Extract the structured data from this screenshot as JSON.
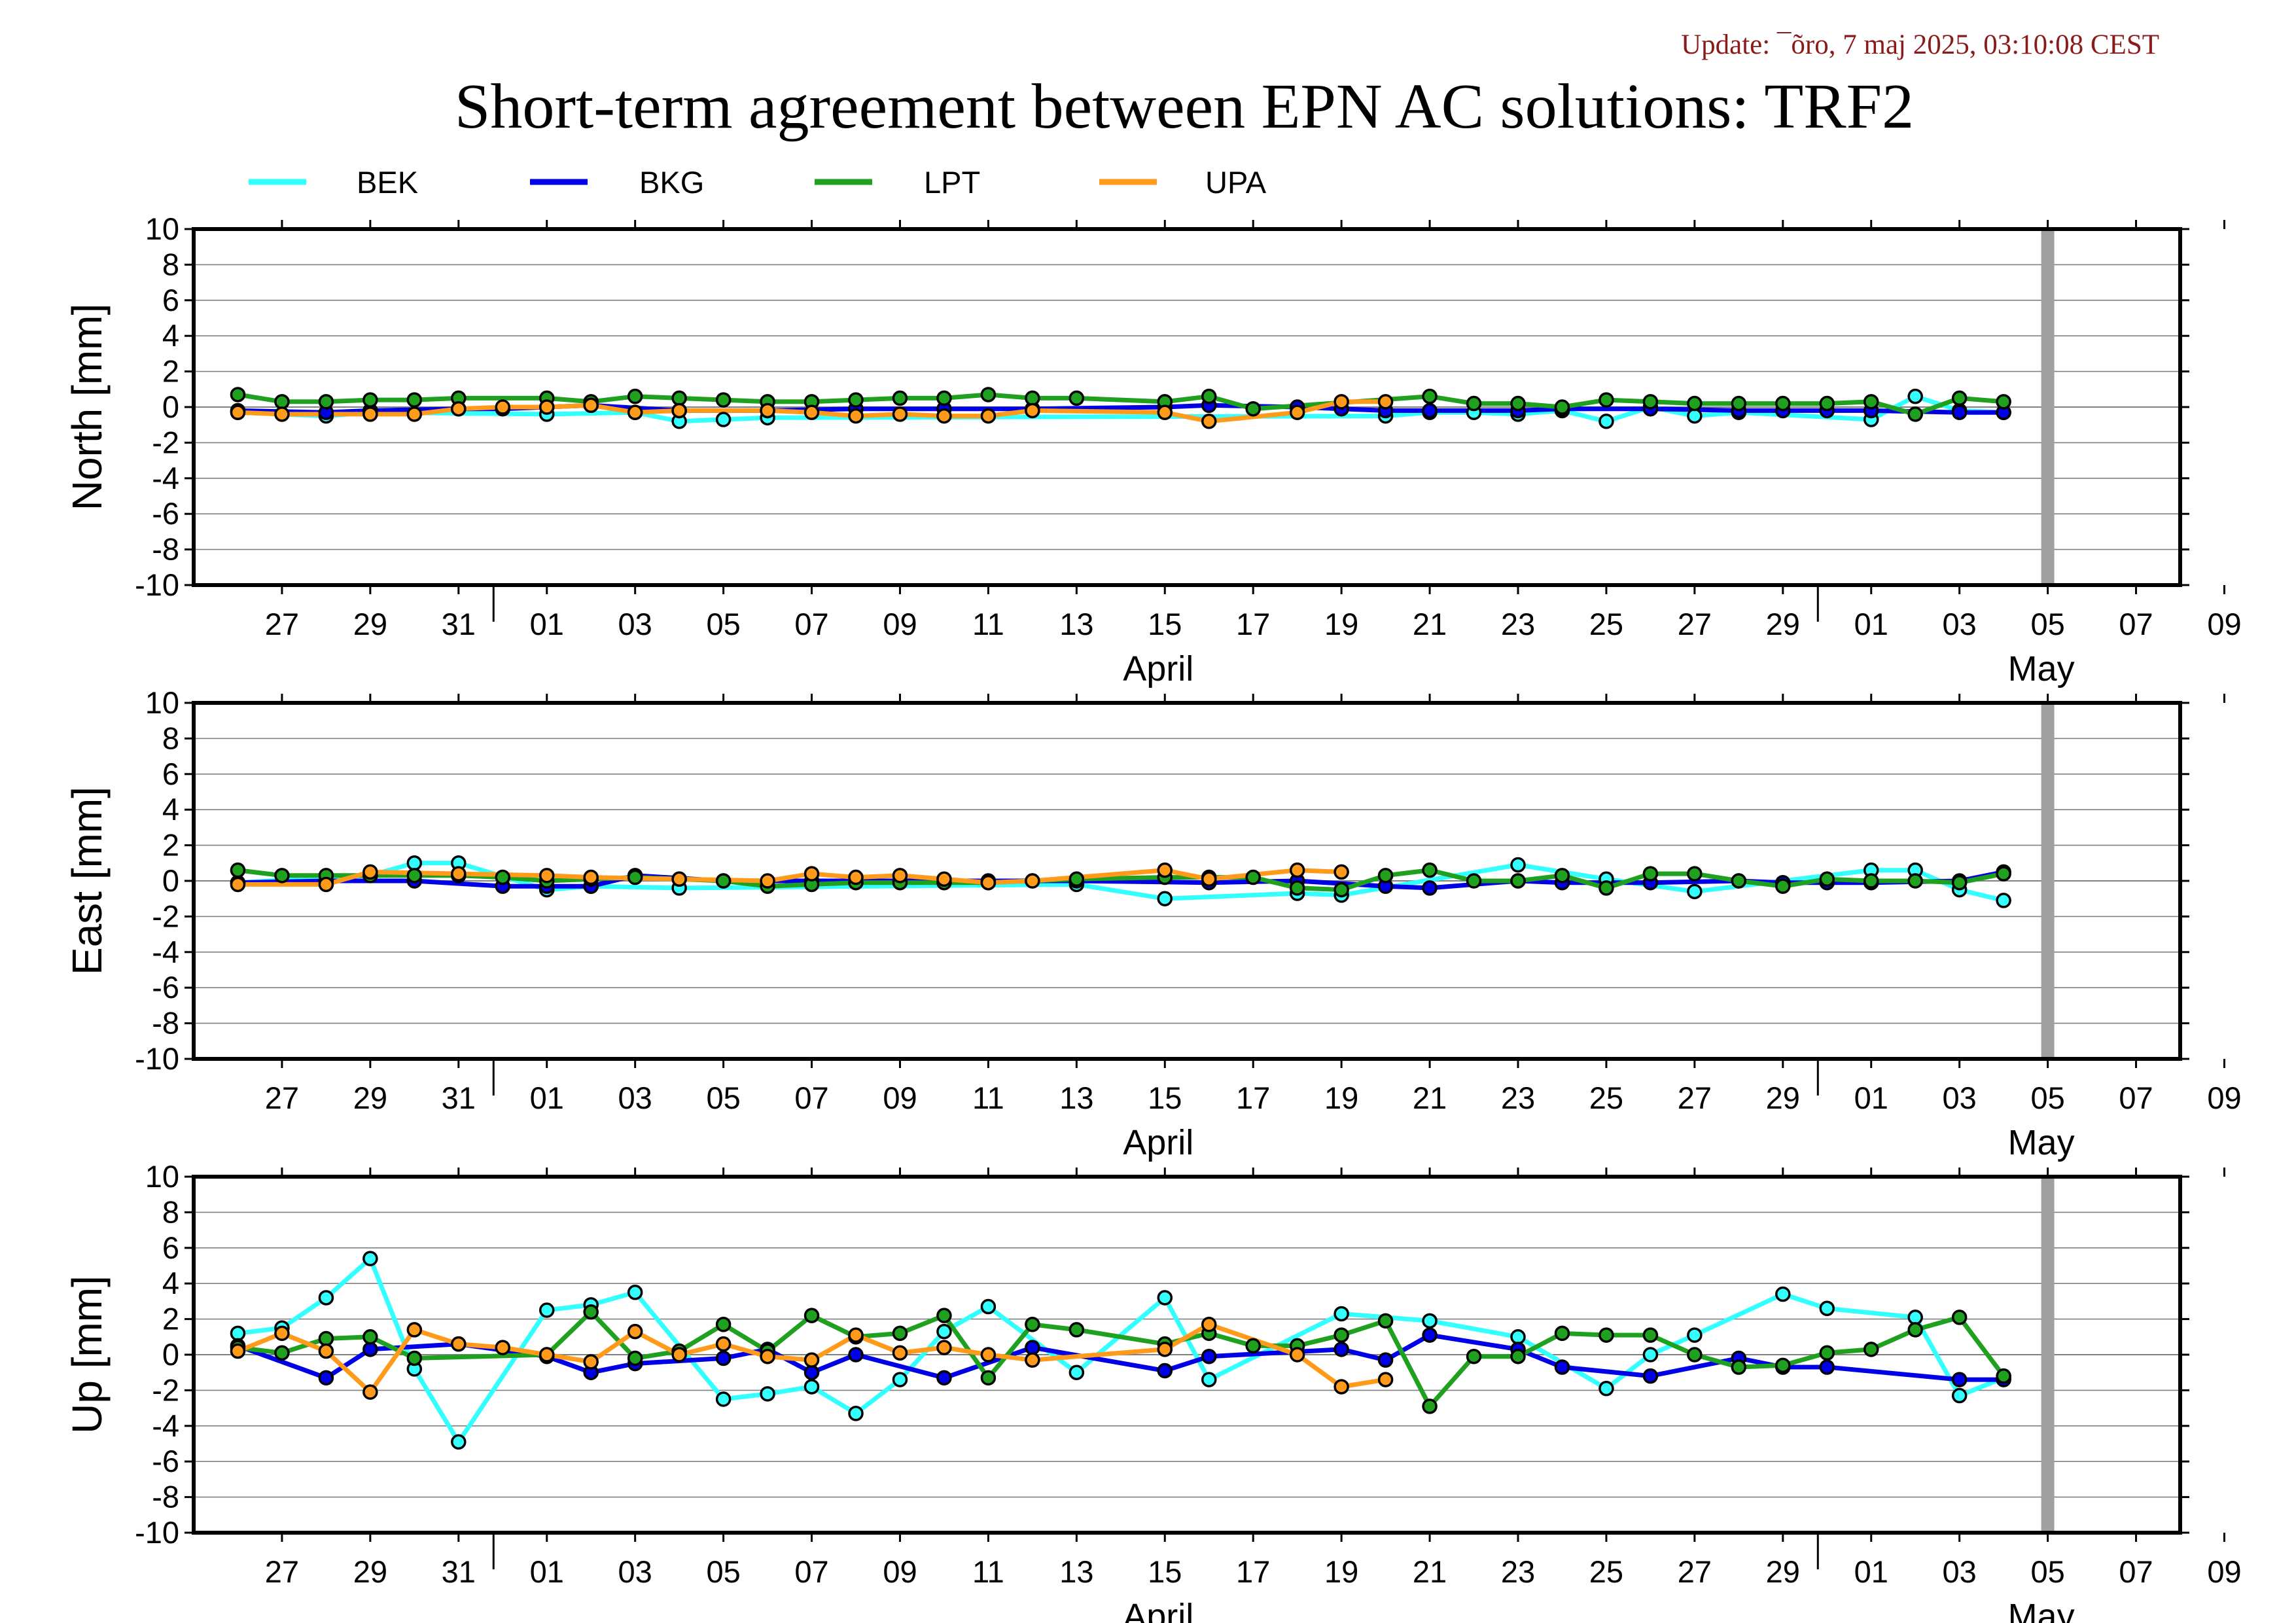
{
  "update": "Update: ¯õro, 7 maj 2025, 03:10:08 CEST",
  "title": "Short-term agreement between EPN AC solutions: TRF2",
  "legend": [
    {
      "name": "BEK",
      "color": "#33ffff"
    },
    {
      "name": "BKG",
      "color": "#0000e6"
    },
    {
      "name": "LPT",
      "color": "#1fa01f"
    },
    {
      "name": "UPA",
      "color": "#ff9a1a"
    }
  ],
  "chart_data": [
    {
      "type": "line",
      "ylabel": "North [mm]",
      "ylim": [
        -10,
        10
      ],
      "yticks": [
        10,
        8,
        6,
        4,
        2,
        0,
        -2,
        -4,
        -6,
        -8,
        -10
      ],
      "xlim": [
        "2025-03-25",
        "2025-05-09"
      ],
      "xtick_labels": [
        "27",
        "29",
        "31",
        "01",
        "03",
        "05",
        "07",
        "09",
        "11",
        "13",
        "15",
        "17",
        "19",
        "21",
        "23",
        "25",
        "27",
        "29",
        "01",
        "03",
        "05",
        "07",
        "09"
      ],
      "month_labels": [
        "April",
        "May"
      ],
      "grid": true,
      "marker_line": "2025-05-06",
      "series": [
        {
          "name": "BEK",
          "x": [
            "2025-03-26",
            "2025-03-28",
            "2025-03-29",
            "2025-04-02",
            "2025-04-04",
            "2025-04-05",
            "2025-04-06",
            "2025-04-07",
            "2025-04-21",
            "2025-04-22",
            "2025-04-23",
            "2025-04-24",
            "2025-04-25",
            "2025-04-26",
            "2025-04-27",
            "2025-04-28",
            "2025-04-29",
            "2025-05-02",
            "2025-05-03",
            "2025-05-04",
            "2025-05-05"
          ],
          "y": [
            -0.3,
            -0.5,
            -0.3,
            -0.4,
            -0.3,
            -0.8,
            -0.7,
            -0.6,
            -0.5,
            -0.3,
            -0.3,
            -0.4,
            -0.2,
            -0.8,
            0.0,
            -0.5,
            -0.3,
            -0.7,
            0.6,
            -0.2,
            -0.3
          ]
        },
        {
          "name": "BKG",
          "x": [
            "2025-03-26",
            "2025-03-28",
            "2025-03-29",
            "2025-03-31",
            "2025-04-01",
            "2025-04-02",
            "2025-04-03",
            "2025-04-05",
            "2025-04-07",
            "2025-04-09",
            "2025-04-11",
            "2025-04-13",
            "2025-04-16",
            "2025-04-17",
            "2025-04-19",
            "2025-04-20",
            "2025-04-21",
            "2025-04-22",
            "2025-04-24",
            "2025-04-25",
            "2025-04-27",
            "2025-04-29",
            "2025-04-30",
            "2025-05-01",
            "2025-05-02",
            "2025-05-04",
            "2025-05-05"
          ],
          "y": [
            -0.2,
            -0.3,
            -0.2,
            -0.1,
            -0.1,
            0.0,
            0.1,
            -0.2,
            -0.2,
            -0.1,
            -0.1,
            -0.1,
            0.0,
            0.1,
            0.0,
            -0.1,
            -0.2,
            -0.2,
            -0.2,
            -0.1,
            -0.1,
            -0.2,
            -0.2,
            -0.2,
            -0.2,
            -0.3,
            -0.3
          ]
        },
        {
          "name": "LPT",
          "x": [
            "2025-03-26",
            "2025-03-27",
            "2025-03-28",
            "2025-03-29",
            "2025-03-30",
            "2025-03-31",
            "2025-04-02",
            "2025-04-03",
            "2025-04-04",
            "2025-04-05",
            "2025-04-06",
            "2025-04-07",
            "2025-04-08",
            "2025-04-09",
            "2025-04-10",
            "2025-04-11",
            "2025-04-12",
            "2025-04-13",
            "2025-04-14",
            "2025-04-16",
            "2025-04-17",
            "2025-04-18",
            "2025-04-22",
            "2025-04-23",
            "2025-04-24",
            "2025-04-25",
            "2025-04-26",
            "2025-04-27",
            "2025-04-28",
            "2025-04-29",
            "2025-04-30",
            "2025-05-01",
            "2025-05-02",
            "2025-05-03",
            "2025-05-04",
            "2025-05-05"
          ],
          "y": [
            0.7,
            0.3,
            0.3,
            0.4,
            0.4,
            0.5,
            0.5,
            0.3,
            0.6,
            0.5,
            0.4,
            0.3,
            0.3,
            0.4,
            0.5,
            0.5,
            0.7,
            0.5,
            0.5,
            0.3,
            0.6,
            -0.1,
            0.6,
            0.2,
            0.2,
            0.0,
            0.4,
            0.3,
            0.2,
            0.2,
            0.2,
            0.2,
            0.3,
            -0.4,
            0.5,
            0.3
          ]
        },
        {
          "name": "UPA",
          "x": [
            "2025-03-26",
            "2025-03-27",
            "2025-03-29",
            "2025-03-30",
            "2025-03-31",
            "2025-04-01",
            "2025-04-02",
            "2025-04-03",
            "2025-04-04",
            "2025-04-05",
            "2025-04-07",
            "2025-04-08",
            "2025-04-09",
            "2025-04-10",
            "2025-04-11",
            "2025-04-12",
            "2025-04-13",
            "2025-04-16",
            "2025-04-17",
            "2025-04-19",
            "2025-04-20",
            "2025-04-21"
          ],
          "y": [
            -0.3,
            -0.4,
            -0.4,
            -0.4,
            -0.1,
            0.0,
            0.0,
            0.1,
            -0.3,
            -0.2,
            -0.2,
            -0.3,
            -0.5,
            -0.4,
            -0.5,
            -0.5,
            -0.2,
            -0.3,
            -0.8,
            -0.3,
            0.3,
            0.3
          ]
        }
      ]
    },
    {
      "type": "line",
      "ylabel": "East [mm]",
      "ylim": [
        -10,
        10
      ],
      "yticks": [
        10,
        8,
        6,
        4,
        2,
        0,
        -2,
        -4,
        -6,
        -8,
        -10
      ],
      "xlim": [
        "2025-03-25",
        "2025-05-09"
      ],
      "xtick_labels": [
        "27",
        "29",
        "31",
        "01",
        "03",
        "05",
        "07",
        "09",
        "11",
        "13",
        "15",
        "17",
        "19",
        "21",
        "23",
        "25",
        "27",
        "29",
        "01",
        "03",
        "05",
        "07",
        "09"
      ],
      "month_labels": [
        "April",
        "May"
      ],
      "grid": true,
      "marker_line": "2025-05-06",
      "series": [
        {
          "name": "BEK",
          "x": [
            "2025-03-26",
            "2025-03-29",
            "2025-03-30",
            "2025-03-31",
            "2025-04-02",
            "2025-04-03",
            "2025-04-05",
            "2025-04-14",
            "2025-04-16",
            "2025-04-19",
            "2025-04-20",
            "2025-04-24",
            "2025-04-26",
            "2025-04-28",
            "2025-05-02",
            "2025-05-03",
            "2025-05-04",
            "2025-05-05"
          ],
          "y": [
            -0.1,
            0.3,
            1.0,
            1.0,
            -0.5,
            -0.3,
            -0.4,
            -0.2,
            -1.0,
            -0.7,
            -0.8,
            0.9,
            0.1,
            -0.6,
            0.6,
            0.6,
            -0.5,
            -1.1
          ]
        },
        {
          "name": "BKG",
          "x": [
            "2025-03-26",
            "2025-03-28",
            "2025-03-30",
            "2025-04-01",
            "2025-04-02",
            "2025-04-03",
            "2025-04-04",
            "2025-04-06",
            "2025-04-08",
            "2025-04-10",
            "2025-04-12",
            "2025-04-14",
            "2025-04-17",
            "2025-04-19",
            "2025-04-21",
            "2025-04-22",
            "2025-04-24",
            "2025-04-25",
            "2025-04-27",
            "2025-04-29",
            "2025-04-30",
            "2025-05-01",
            "2025-05-02",
            "2025-05-04",
            "2025-05-05"
          ],
          "y": [
            -0.1,
            0.0,
            0.0,
            -0.3,
            -0.3,
            -0.3,
            0.3,
            0.0,
            0.0,
            0.0,
            0.0,
            0.0,
            -0.1,
            0.0,
            -0.3,
            -0.4,
            0.0,
            -0.1,
            -0.1,
            0.0,
            -0.1,
            -0.1,
            -0.1,
            0.0,
            0.5
          ]
        },
        {
          "name": "LPT",
          "x": [
            "2025-03-26",
            "2025-03-27",
            "2025-03-28",
            "2025-03-29",
            "2025-03-30",
            "2025-03-31",
            "2025-04-01",
            "2025-04-02",
            "2025-04-03",
            "2025-04-04",
            "2025-04-05",
            "2025-04-06",
            "2025-04-07",
            "2025-04-08",
            "2025-04-09",
            "2025-04-10",
            "2025-04-11",
            "2025-04-12",
            "2025-04-13",
            "2025-04-14",
            "2025-04-16",
            "2025-04-17",
            "2025-04-18",
            "2025-04-19",
            "2025-04-20",
            "2025-04-21",
            "2025-04-22",
            "2025-04-23",
            "2025-04-24",
            "2025-04-25",
            "2025-04-26",
            "2025-04-27",
            "2025-04-28",
            "2025-04-29",
            "2025-04-30",
            "2025-05-01",
            "2025-05-02",
            "2025-05-03",
            "2025-05-04",
            "2025-05-05"
          ],
          "y": [
            0.6,
            0.3,
            0.3,
            0.3,
            0.3,
            0.3,
            0.2,
            0.0,
            0.1,
            0.2,
            0.1,
            0.0,
            -0.3,
            -0.2,
            -0.1,
            -0.1,
            -0.1,
            -0.1,
            0.0,
            0.1,
            0.2,
            0.2,
            0.2,
            -0.4,
            -0.5,
            0.3,
            0.6,
            0.0,
            0.0,
            0.3,
            -0.4,
            0.4,
            0.4,
            0.0,
            -0.3,
            0.1,
            0.0,
            0.0,
            -0.1,
            0.4
          ]
        },
        {
          "name": "UPA",
          "x": [
            "2025-03-26",
            "2025-03-28",
            "2025-03-29",
            "2025-03-31",
            "2025-04-02",
            "2025-04-03",
            "2025-04-05",
            "2025-04-07",
            "2025-04-08",
            "2025-04-09",
            "2025-04-10",
            "2025-04-11",
            "2025-04-12",
            "2025-04-13",
            "2025-04-16",
            "2025-04-17",
            "2025-04-19",
            "2025-04-20"
          ],
          "y": [
            -0.2,
            -0.2,
            0.5,
            0.4,
            0.3,
            0.2,
            0.1,
            0.0,
            0.4,
            0.2,
            0.3,
            0.1,
            -0.1,
            0.0,
            0.6,
            0.1,
            0.6,
            0.5
          ]
        }
      ]
    },
    {
      "type": "line",
      "ylabel": "Up [mm]",
      "ylim": [
        -10,
        10
      ],
      "yticks": [
        10,
        8,
        6,
        4,
        2,
        0,
        -2,
        -4,
        -6,
        -8,
        -10
      ],
      "xlim": [
        "2025-03-25",
        "2025-05-09"
      ],
      "xtick_labels": [
        "27",
        "29",
        "31",
        "01",
        "03",
        "05",
        "07",
        "09",
        "11",
        "13",
        "15",
        "17",
        "19",
        "21",
        "23",
        "25",
        "27",
        "29",
        "01",
        "03",
        "05",
        "07",
        "09"
      ],
      "month_labels": [
        "April",
        "May"
      ],
      "grid": true,
      "marker_line": "2025-05-06",
      "series": [
        {
          "name": "BEK",
          "x": [
            "2025-03-26",
            "2025-03-27",
            "2025-03-28",
            "2025-03-29",
            "2025-03-30",
            "2025-03-31",
            "2025-04-02",
            "2025-04-03",
            "2025-04-04",
            "2025-04-06",
            "2025-04-07",
            "2025-04-08",
            "2025-04-09",
            "2025-04-10",
            "2025-04-11",
            "2025-04-12",
            "2025-04-14",
            "2025-04-16",
            "2025-04-17",
            "2025-04-20",
            "2025-04-22",
            "2025-04-24",
            "2025-04-26",
            "2025-04-27",
            "2025-04-28",
            "2025-04-30",
            "2025-05-01",
            "2025-05-03",
            "2025-05-04",
            "2025-05-05"
          ],
          "y": [
            1.2,
            1.5,
            3.2,
            5.4,
            -0.8,
            -4.9,
            2.5,
            2.8,
            3.5,
            -2.5,
            -2.2,
            -1.8,
            -3.3,
            -1.4,
            1.3,
            2.7,
            -1.0,
            3.2,
            -1.4,
            2.3,
            1.9,
            1.0,
            -1.9,
            0.0,
            1.1,
            3.4,
            2.6,
            2.1,
            -2.3,
            -1.3
          ]
        },
        {
          "name": "BKG",
          "x": [
            "2025-03-26",
            "2025-03-28",
            "2025-03-29",
            "2025-03-31",
            "2025-04-02",
            "2025-04-03",
            "2025-04-04",
            "2025-04-06",
            "2025-04-07",
            "2025-04-08",
            "2025-04-09",
            "2025-04-11",
            "2025-04-13",
            "2025-04-16",
            "2025-04-17",
            "2025-04-20",
            "2025-04-21",
            "2025-04-22",
            "2025-04-24",
            "2025-04-25",
            "2025-04-27",
            "2025-04-29",
            "2025-04-30",
            "2025-05-01",
            "2025-05-04",
            "2025-05-05"
          ],
          "y": [
            0.5,
            -1.3,
            0.3,
            0.6,
            -0.1,
            -1.0,
            -0.5,
            -0.2,
            0.3,
            -1.0,
            0.0,
            -1.3,
            0.4,
            -0.9,
            -0.1,
            0.3,
            -0.3,
            1.1,
            0.3,
            -0.7,
            -1.2,
            -0.2,
            -0.7,
            -0.7,
            -1.4,
            -1.4
          ]
        },
        {
          "name": "LPT",
          "x": [
            "2025-03-26",
            "2025-03-27",
            "2025-03-28",
            "2025-03-29",
            "2025-03-30",
            "2025-04-02",
            "2025-04-03",
            "2025-04-04",
            "2025-04-05",
            "2025-04-06",
            "2025-04-07",
            "2025-04-08",
            "2025-04-09",
            "2025-04-10",
            "2025-04-11",
            "2025-04-12",
            "2025-04-13",
            "2025-04-14",
            "2025-04-16",
            "2025-04-17",
            "2025-04-18",
            "2025-04-19",
            "2025-04-20",
            "2025-04-21",
            "2025-04-22",
            "2025-04-23",
            "2025-04-24",
            "2025-04-25",
            "2025-04-26",
            "2025-04-27",
            "2025-04-28",
            "2025-04-29",
            "2025-04-30",
            "2025-05-01",
            "2025-05-02",
            "2025-05-03",
            "2025-05-04",
            "2025-05-05"
          ],
          "y": [
            0.4,
            0.1,
            0.9,
            1.0,
            -0.2,
            0.0,
            2.4,
            -0.2,
            0.2,
            1.7,
            0.2,
            2.2,
            1.0,
            1.2,
            2.2,
            -1.3,
            1.7,
            1.4,
            0.6,
            1.2,
            0.5,
            0.5,
            1.1,
            1.9,
            -2.9,
            -0.1,
            -0.1,
            1.2,
            1.1,
            1.1,
            0.0,
            -0.7,
            -0.6,
            0.1,
            0.3,
            1.4,
            2.1,
            -1.2
          ]
        },
        {
          "name": "UPA",
          "x": [
            "2025-03-26",
            "2025-03-27",
            "2025-03-28",
            "2025-03-29",
            "2025-03-30",
            "2025-03-31",
            "2025-04-01",
            "2025-04-02",
            "2025-04-03",
            "2025-04-04",
            "2025-04-05",
            "2025-04-06",
            "2025-04-07",
            "2025-04-08",
            "2025-04-09",
            "2025-04-10",
            "2025-04-11",
            "2025-04-12",
            "2025-04-13",
            "2025-04-16",
            "2025-04-17",
            "2025-04-19",
            "2025-04-20",
            "2025-04-21"
          ],
          "y": [
            0.2,
            1.2,
            0.2,
            -2.1,
            1.4,
            0.6,
            0.4,
            0.0,
            -0.4,
            1.3,
            0.0,
            0.6,
            -0.1,
            -0.3,
            1.1,
            0.1,
            0.4,
            0.0,
            -0.3,
            0.3,
            1.7,
            0.0,
            -1.8,
            -1.4
          ]
        }
      ]
    }
  ]
}
